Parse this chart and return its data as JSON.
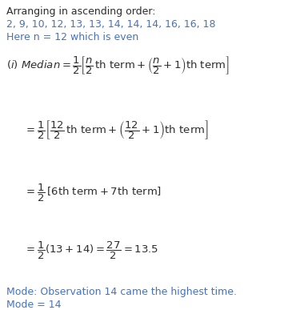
{
  "bg_color": "#ffffff",
  "text_color_black": "#2d2d2d",
  "text_color_blue": "#4472c4",
  "figsize": [
    3.55,
    3.97
  ],
  "dpi": 100,
  "line1": "Arranging in ascending order:",
  "line2": "2, 9, 10, 12, 13, 13, 14, 14, 14, 16, 16, 18",
  "line3": "Here n = 12 which is even",
  "mode_line1": "Mode: Observation 14 came the highest time.",
  "mode_line2": "Mode = 14",
  "fs_text": 9.0,
  "fs_eq": 9.5
}
